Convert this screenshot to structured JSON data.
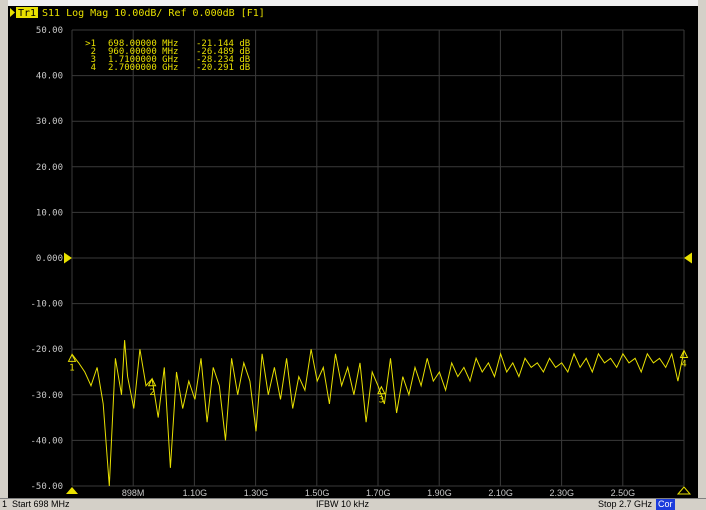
{
  "trace_header": {
    "trace_label": "Tr1",
    "text": "S11 Log Mag 10.00dB/ Ref 0.000dB [F1]"
  },
  "reference_value_label": "0.000",
  "markers": [
    {
      "id": "1",
      "active": true,
      "freq": "698.00000 MHz",
      "value": "-21.144 dB"
    },
    {
      "id": "2",
      "active": false,
      "freq": "960.00000 MHz",
      "value": "-26.489 dB"
    },
    {
      "id": "3",
      "active": false,
      "freq": "1.7100000 GHz",
      "value": "-28.234 dB"
    },
    {
      "id": "4",
      "active": false,
      "freq": "2.7000000 GHz",
      "value": "-20.291 dB"
    }
  ],
  "status": {
    "channel": "1",
    "start": "Start 698 MHz",
    "ifbw": "IFBW 10 kHz",
    "stop": "Stop 2.7 GHz",
    "cor": "Cor"
  },
  "colors": {
    "background": "#000000",
    "grid": "#3a3a3a",
    "trace": "#e8e000",
    "marker_text": "#e8e000",
    "axis_text": "#c8c8c8"
  },
  "chart_data": {
    "type": "line",
    "title": "S11 Log Mag 10.00dB/ Ref 0.000dB [F1]",
    "xlabel": "",
    "ylabel": "",
    "xlim": [
      0.698,
      2.7
    ],
    "ylim": [
      -50,
      50
    ],
    "x_unit": "GHz",
    "y_unit": "dB",
    "grid": true,
    "y_ticks": [
      50,
      40,
      30,
      20,
      10,
      0,
      -10,
      -20,
      -30,
      -40,
      -50
    ],
    "y_tick_labels": [
      "50.00",
      "40.00",
      "30.00",
      "20.00",
      "10.00",
      "0.000",
      "-10.00",
      "-20.00",
      "-30.00",
      "-40.00",
      "-50.00"
    ],
    "x_ticks": [
      0.898,
      1.1,
      1.3,
      1.5,
      1.7,
      1.9,
      2.1,
      2.3,
      2.5
    ],
    "x_tick_labels": [
      "898M",
      "1.10G",
      "1.30G",
      "1.50G",
      "1.70G",
      "1.90G",
      "2.10G",
      "2.30G",
      "2.50G"
    ],
    "series": [
      {
        "x": [
          0.698,
          0.72,
          0.74,
          0.76,
          0.78,
          0.8,
          0.82,
          0.84,
          0.86,
          0.87,
          0.88,
          0.9,
          0.92,
          0.94,
          0.96,
          0.98,
          1.0,
          1.02,
          1.04,
          1.06,
          1.08,
          1.1,
          1.12,
          1.14,
          1.16,
          1.18,
          1.2,
          1.22,
          1.24,
          1.26,
          1.28,
          1.3,
          1.32,
          1.34,
          1.36,
          1.38,
          1.4,
          1.42,
          1.44,
          1.46,
          1.48,
          1.5,
          1.52,
          1.54,
          1.56,
          1.58,
          1.6,
          1.62,
          1.64,
          1.66,
          1.68,
          1.7,
          1.72,
          1.74,
          1.76,
          1.78,
          1.8,
          1.82,
          1.84,
          1.86,
          1.88,
          1.9,
          1.92,
          1.94,
          1.96,
          1.98,
          2.0,
          2.02,
          2.04,
          2.06,
          2.08,
          2.1,
          2.12,
          2.14,
          2.16,
          2.18,
          2.2,
          2.22,
          2.24,
          2.26,
          2.28,
          2.3,
          2.32,
          2.34,
          2.36,
          2.38,
          2.4,
          2.42,
          2.44,
          2.46,
          2.48,
          2.5,
          2.52,
          2.54,
          2.56,
          2.58,
          2.6,
          2.62,
          2.64,
          2.66,
          2.68,
          2.7
        ],
        "y": [
          -21.1,
          -23,
          -25,
          -28,
          -24,
          -32,
          -50,
          -22,
          -30,
          -18,
          -26,
          -33,
          -20,
          -28,
          -26.5,
          -35,
          -24,
          -46,
          -25,
          -33,
          -27,
          -31,
          -22,
          -36,
          -24,
          -28,
          -40,
          -22,
          -30,
          -23,
          -27,
          -38,
          -21,
          -30,
          -24,
          -31,
          -22,
          -33,
          -26,
          -29,
          -20,
          -27,
          -24,
          -32,
          -21,
          -28,
          -24,
          -30,
          -23,
          -36,
          -25,
          -28.2,
          -32,
          -22,
          -34,
          -26,
          -30,
          -24,
          -28,
          -22,
          -27,
          -25,
          -29,
          -23,
          -26,
          -24,
          -27,
          -22,
          -25,
          -23,
          -26,
          -21,
          -25,
          -23,
          -26,
          -22,
          -24,
          -23,
          -25,
          -22,
          -24,
          -23,
          -25,
          -21,
          -24,
          -22,
          -25,
          -21,
          -23,
          -22,
          -24,
          -21,
          -23,
          -22,
          -25,
          -21,
          -23,
          -22,
          -24,
          -21,
          -27,
          -20.3
        ]
      }
    ]
  }
}
